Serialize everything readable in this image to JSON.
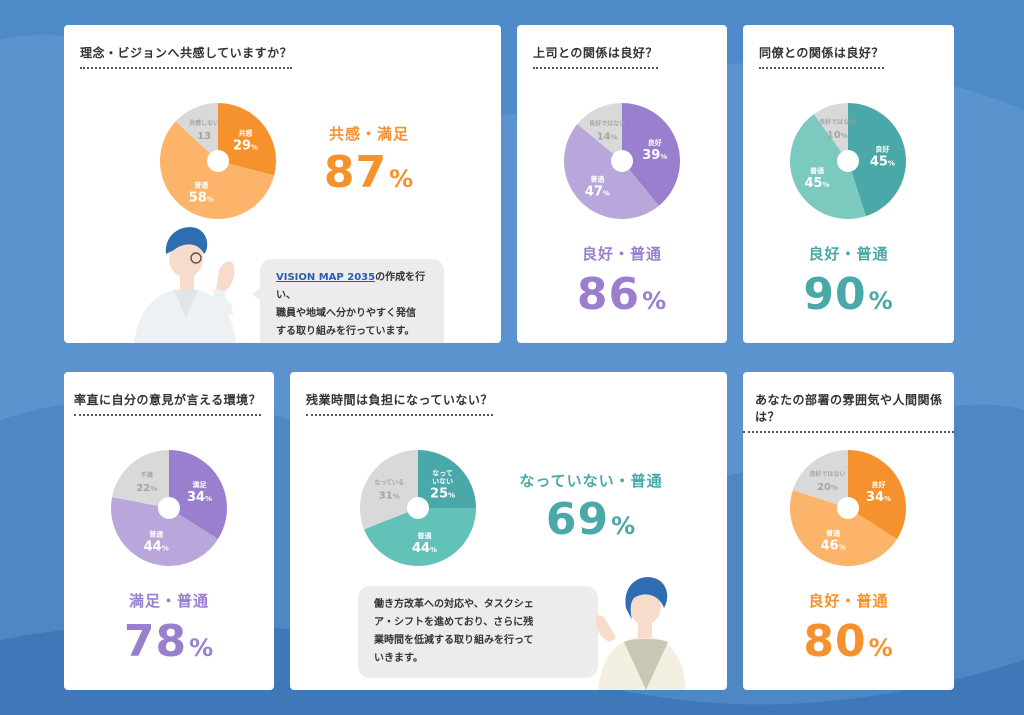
{
  "colors": {
    "orange": "#f6922d",
    "orange_light": "#fbb46a",
    "purple": "#9a7fcf",
    "purple_light": "#b9a7db",
    "teal": "#4aa9a8",
    "teal_light": "#7cc9c0",
    "teal_mid": "#63c2b8",
    "gray": "#d9d9d9",
    "background": "#5b93cf"
  },
  "cards": [
    {
      "question": "理念・ビジョンへ共感していますか？",
      "summary_label": "共感・満足",
      "summary_value": "87",
      "summary_unit": "%",
      "slices": [
        {
          "label": "共感",
          "value": 29,
          "pct": "%"
        },
        {
          "label": "普通",
          "value": 58,
          "pct": "%"
        },
        {
          "label": "共感しない",
          "value": 13,
          "pct": ""
        }
      ],
      "comment_link": "VISION MAP 2035",
      "comment_lines": [
        "の作成を行い、",
        "職員や地域へ分かりやすく発信",
        "する取り組みを行っています。"
      ]
    },
    {
      "question": "上司との関係は良好？",
      "summary_label": "良好・普通",
      "summary_value": "86",
      "summary_unit": "%",
      "slices": [
        {
          "label": "良好",
          "value": 39,
          "pct": "%"
        },
        {
          "label": "普通",
          "value": 47,
          "pct": "%"
        },
        {
          "label": "良好ではない",
          "value": 14,
          "pct": "%"
        }
      ]
    },
    {
      "question": "同僚との関係は良好？",
      "summary_label": "良好・普通",
      "summary_value": "90",
      "summary_unit": "%",
      "slices": [
        {
          "label": "良好",
          "value": 45,
          "pct": "%"
        },
        {
          "label": "普通",
          "value": 45,
          "pct": "%"
        },
        {
          "label": "良好ではない",
          "value": 10,
          "pct": "%"
        }
      ]
    },
    {
      "question": "率直に自分の意見が言える環境？",
      "summary_label": "満足・普通",
      "summary_value": "78",
      "summary_unit": "%",
      "slices": [
        {
          "label": "満足",
          "value": 34,
          "pct": "%"
        },
        {
          "label": "普通",
          "value": 44,
          "pct": "%"
        },
        {
          "label": "不満",
          "value": 22,
          "pct": "%"
        }
      ]
    },
    {
      "question": "残業時間は負担になっていない？",
      "summary_label": "なっていない・普通",
      "summary_value": "69",
      "summary_unit": "%",
      "slices": [
        {
          "label": "なって\nいない",
          "value": 25,
          "pct": "%"
        },
        {
          "label": "普通",
          "value": 44,
          "pct": "%"
        },
        {
          "label": "なっている",
          "value": 31,
          "pct": "%"
        }
      ],
      "comment_lines": [
        "働き方改革への対応や、タスクシェ",
        "ア・シフトを進めており、さらに残",
        "業時間を低減する取り組みを行って",
        "いきます。"
      ]
    },
    {
      "question": "あなたの部署の雰囲気や人間関係",
      "question_line2": "は？",
      "summary_label": "良好・普通",
      "summary_value": "80",
      "summary_unit": "%",
      "slices": [
        {
          "label": "良好",
          "value": 34,
          "pct": "%"
        },
        {
          "label": "普通",
          "value": 46,
          "pct": "%"
        },
        {
          "label": "良好ではない",
          "value": 20,
          "pct": "%"
        }
      ]
    }
  ]
}
